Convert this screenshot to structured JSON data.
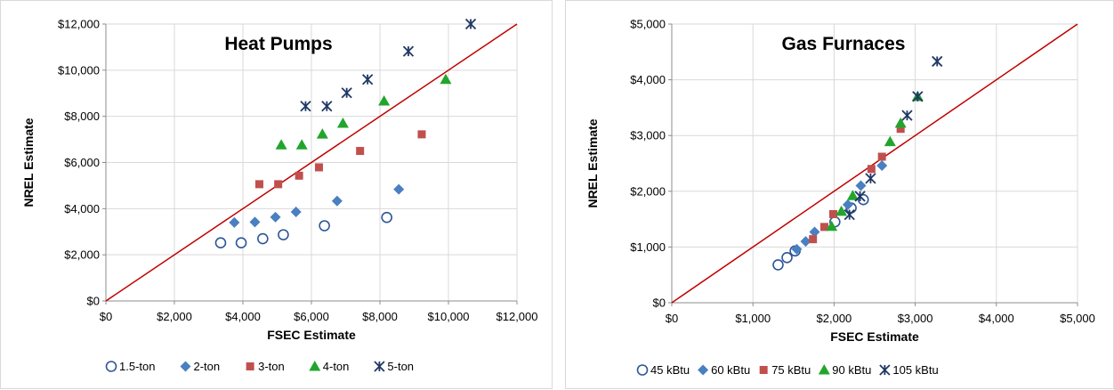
{
  "chart_data": [
    {
      "type": "scatter",
      "title": "Heat Pumps",
      "xlabel": "FSEC Estimate",
      "ylabel": "NREL Estimate",
      "xlim": [
        0,
        12000
      ],
      "ylim": [
        0,
        12000
      ],
      "x_ticks": [
        0,
        2000,
        4000,
        6000,
        8000,
        10000,
        12000
      ],
      "y_ticks": [
        0,
        2000,
        4000,
        6000,
        8000,
        10000,
        12000
      ],
      "x_tick_labels": [
        "$0",
        "$2,000",
        "$4,000",
        "$6,000",
        "$8,000",
        "$10,000",
        "$12,000"
      ],
      "y_tick_labels": [
        "$0",
        "$2,000",
        "$4,000",
        "$6,000",
        "$8,000",
        "$10,000",
        "$12,000"
      ],
      "grid": true,
      "legend_position": "bottom",
      "reference_line": {
        "from": [
          0,
          0
        ],
        "to": [
          12000,
          12000
        ],
        "color": "#c00000"
      },
      "series": [
        {
          "name": "1.5-ton",
          "marker": "circle-open",
          "color": "#2e5597",
          "points": [
            [
              3350,
              2520
            ],
            [
              3950,
              2520
            ],
            [
              4580,
              2700
            ],
            [
              5180,
              2870
            ],
            [
              6380,
              3260
            ],
            [
              8200,
              3620
            ]
          ]
        },
        {
          "name": "2-ton",
          "marker": "diamond",
          "color": "#4a7fc1",
          "points": [
            [
              3750,
              3400
            ],
            [
              4350,
              3420
            ],
            [
              4950,
              3630
            ],
            [
              5550,
              3860
            ],
            [
              6750,
              4330
            ],
            [
              8550,
              4840
            ]
          ]
        },
        {
          "name": "3-ton",
          "marker": "square",
          "color": "#c0504d",
          "points": [
            [
              4480,
              5060
            ],
            [
              5030,
              5060
            ],
            [
              5640,
              5430
            ],
            [
              6220,
              5790
            ],
            [
              7420,
              6500
            ],
            [
              9220,
              7220
            ]
          ]
        },
        {
          "name": "4-ton",
          "marker": "triangle",
          "color": "#22a52d",
          "points": [
            [
              5120,
              6760
            ],
            [
              5720,
              6760
            ],
            [
              6320,
              7230
            ],
            [
              6920,
              7700
            ],
            [
              8120,
              8660
            ],
            [
              9920,
              9600
            ]
          ]
        },
        {
          "name": "5-ton",
          "marker": "asterisk",
          "color": "#1f3864",
          "points": [
            [
              5830,
              8440
            ],
            [
              6450,
              8440
            ],
            [
              7030,
              9020
            ],
            [
              7640,
              9600
            ],
            [
              8830,
              10820
            ],
            [
              10650,
              12000
            ]
          ]
        }
      ]
    },
    {
      "type": "scatter",
      "title": "Gas Furnaces",
      "xlabel": "FSEC Estimate",
      "ylabel": "NREL Estimate",
      "xlim": [
        0,
        5000
      ],
      "ylim": [
        0,
        5000
      ],
      "x_ticks": [
        0,
        1000,
        2000,
        3000,
        4000,
        5000
      ],
      "y_ticks": [
        0,
        1000,
        2000,
        3000,
        4000,
        5000
      ],
      "x_tick_labels": [
        "$0",
        "$1,000",
        "$2,000",
        "$3,000",
        "$4,000",
        "$5,000"
      ],
      "y_tick_labels": [
        "$0",
        "$1,000",
        "$2,000",
        "$3,000",
        "$4,000",
        "$5,000"
      ],
      "grid": true,
      "legend_position": "bottom",
      "reference_line": {
        "from": [
          0,
          0
        ],
        "to": [
          5000,
          5000
        ],
        "color": "#c00000"
      },
      "series": [
        {
          "name": "45 kBtu",
          "marker": "circle-open",
          "color": "#2e5597",
          "points": [
            [
              1310,
              680
            ],
            [
              1420,
              810
            ],
            [
              1520,
              930
            ],
            [
              2010,
              1450
            ],
            [
              2210,
              1700
            ],
            [
              2360,
              1850
            ]
          ]
        },
        {
          "name": "60 kBtu",
          "marker": "diamond",
          "color": "#4a7fc1",
          "points": [
            [
              1540,
              960
            ],
            [
              1650,
              1100
            ],
            [
              1760,
              1270
            ],
            [
              2170,
              1760
            ],
            [
              2330,
              2100
            ],
            [
              2590,
              2460
            ]
          ]
        },
        {
          "name": "75 kBtu",
          "marker": "square",
          "color": "#c0504d",
          "points": [
            [
              1740,
              1140
            ],
            [
              1880,
              1360
            ],
            [
              1990,
              1590
            ],
            [
              2460,
              2400
            ],
            [
              2590,
              2620
            ],
            [
              2820,
              3120
            ]
          ]
        },
        {
          "name": "90 kBtu",
          "marker": "triangle",
          "color": "#22a52d",
          "points": [
            [
              1970,
              1370
            ],
            [
              2090,
              1640
            ],
            [
              2230,
              1920
            ],
            [
              2690,
              2890
            ],
            [
              2820,
              3220
            ],
            [
              3030,
              3700
            ]
          ]
        },
        {
          "name": "105 kBtu",
          "marker": "asterisk",
          "color": "#1f3864",
          "points": [
            [
              2190,
              1580
            ],
            [
              2320,
              1910
            ],
            [
              2450,
              2230
            ],
            [
              2900,
              3360
            ],
            [
              3030,
              3700
            ],
            [
              3270,
              4330
            ]
          ]
        }
      ]
    }
  ]
}
